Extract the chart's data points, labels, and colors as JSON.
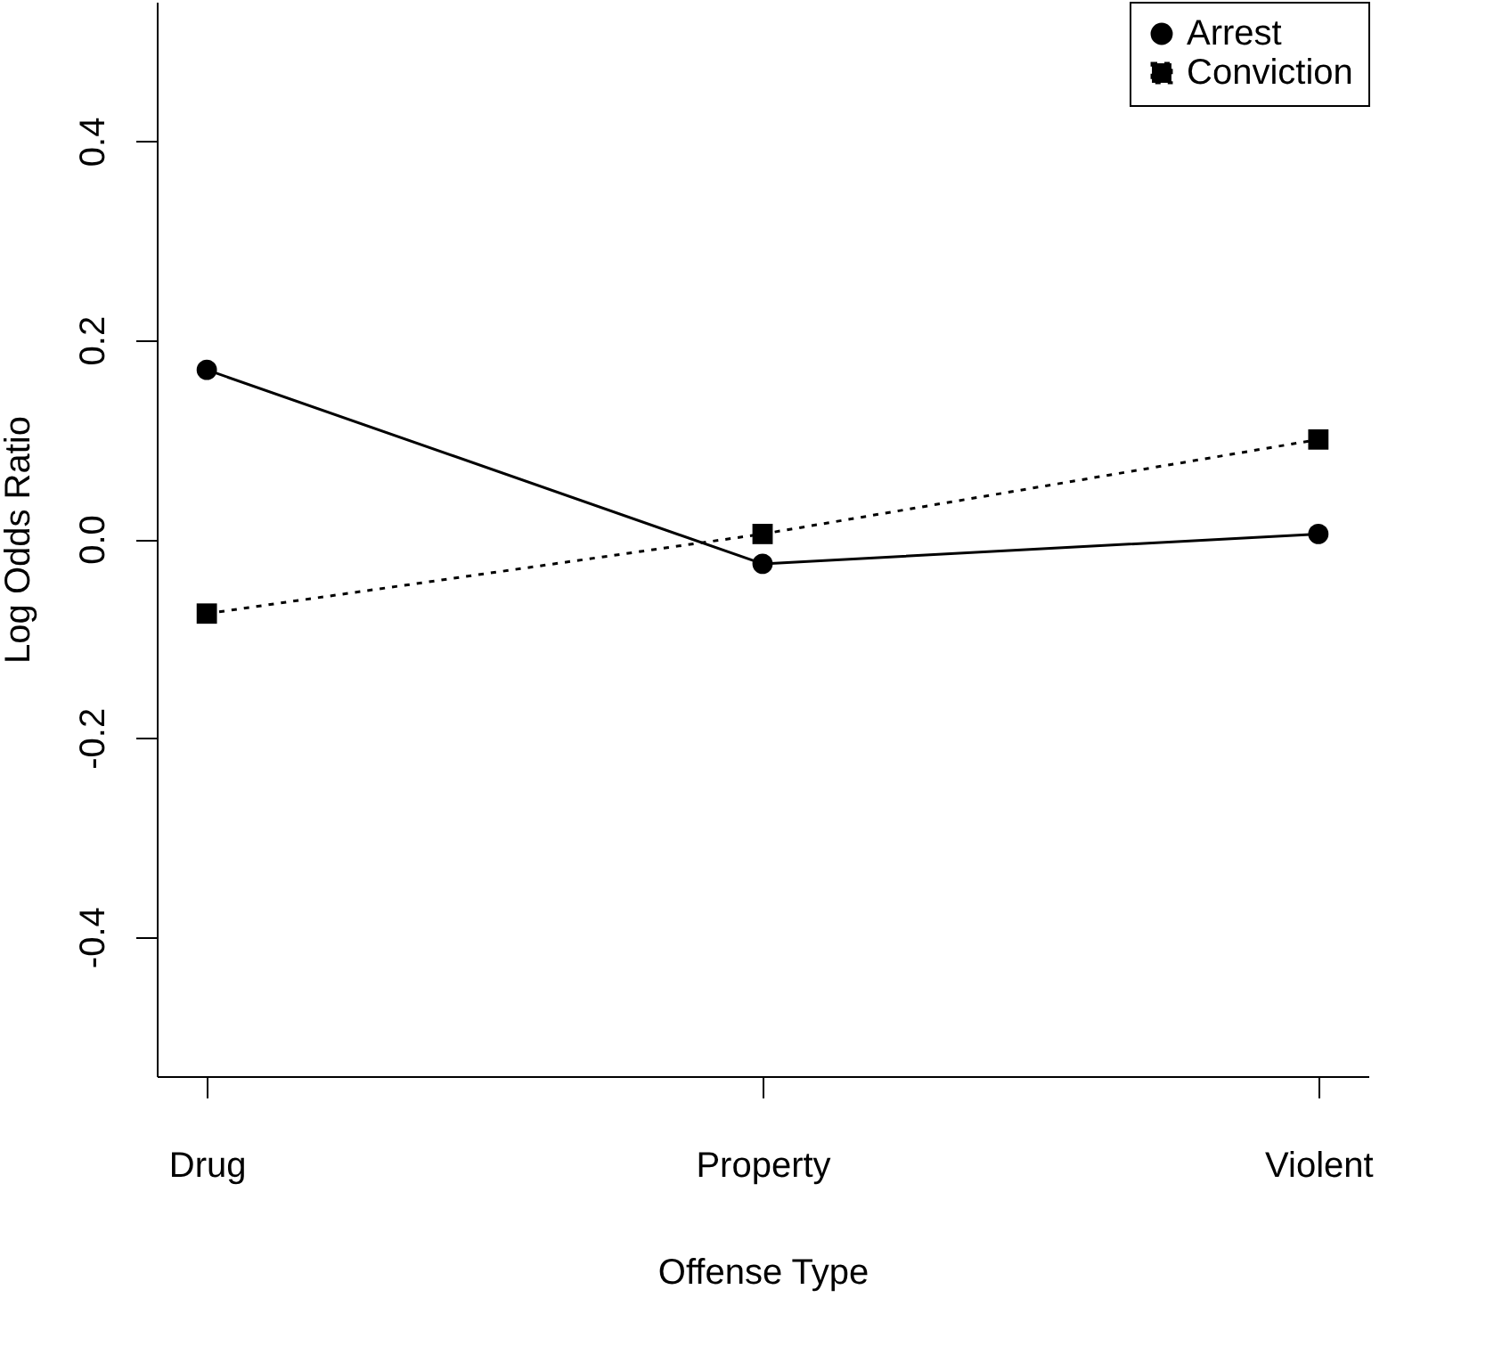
{
  "chart_data": {
    "type": "line",
    "xlabel": "Offense Type",
    "ylabel": "Log Odds Ratio",
    "categories": [
      "Drug",
      "Property",
      "Violent"
    ],
    "series": [
      {
        "name": "Arrest",
        "color": "#000000",
        "marker": "circle",
        "line_style": "solid",
        "values": [
          0.17,
          -0.025,
          0.005
        ]
      },
      {
        "name": "Conviction",
        "color": "#000000",
        "marker": "square",
        "line_style": "dotted",
        "values": [
          -0.075,
          0.005,
          0.1
        ]
      }
    ],
    "ylim": [
      -0.54,
      0.54
    ],
    "yticks": [
      -0.4,
      -0.2,
      {
        "value": 0,
        "label": "0.0"
      },
      0.2,
      0.4
    ],
    "grid": false,
    "legend": "top right"
  }
}
